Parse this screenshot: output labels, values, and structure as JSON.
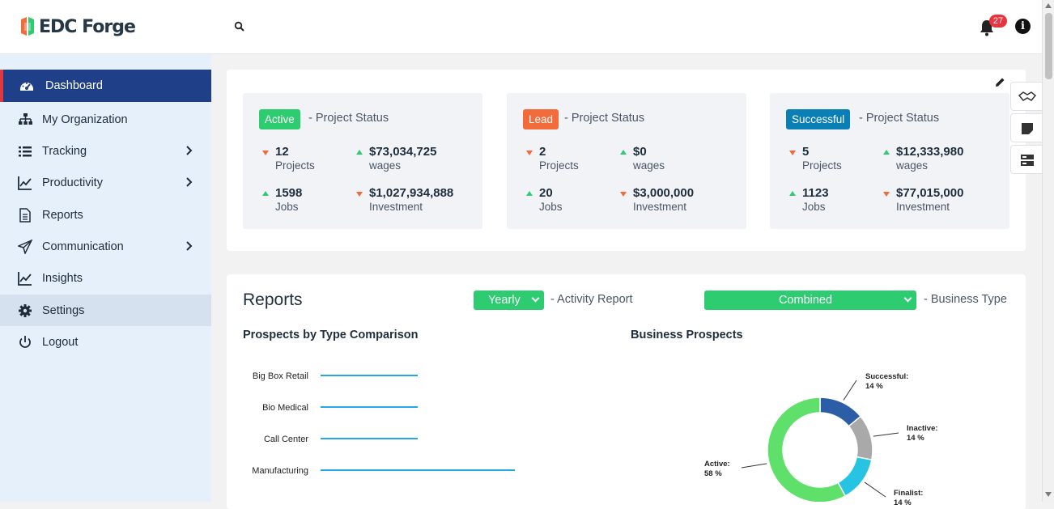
{
  "app": {
    "name": "EDC Forge"
  },
  "header": {
    "notification_count": "27"
  },
  "sidebar": {
    "items": [
      {
        "label": "Dashboard"
      },
      {
        "label": "My Organization"
      },
      {
        "label": "Tracking"
      },
      {
        "label": "Productivity"
      },
      {
        "label": "Reports"
      },
      {
        "label": "Communication"
      },
      {
        "label": "Insights"
      },
      {
        "label": "Settings"
      },
      {
        "label": "Logout"
      }
    ]
  },
  "status_cards": [
    {
      "chip": "Active",
      "chip_color": "#2ecc71",
      "subtitle": "- Project Status",
      "projects": "12",
      "projects_label": "Projects",
      "wages": "$73,034,725",
      "wages_label": "wages",
      "jobs": "1598",
      "jobs_label": "Jobs",
      "investment": "$1,027,934,888",
      "investment_label": "Investment"
    },
    {
      "chip": "Lead",
      "chip_color": "#f26b3a",
      "subtitle": "- Project Status",
      "projects": "2",
      "projects_label": "Projects",
      "wages": "$0",
      "wages_label": "wages",
      "jobs": "20",
      "jobs_label": "Jobs",
      "investment": "$3,000,000",
      "investment_label": "Investment"
    },
    {
      "chip": "Successful",
      "chip_color": "#0a7fb5",
      "subtitle": "- Project Status",
      "projects": "5",
      "projects_label": "Projects",
      "wages": "$12,333,980",
      "wages_label": "wages",
      "jobs": "1123",
      "jobs_label": "Jobs",
      "investment": "$77,015,000",
      "investment_label": "Investment"
    }
  ],
  "reports": {
    "title": "Reports",
    "period_select": "Yearly",
    "period_sub": "- Activity Report",
    "type_select": "Combined",
    "type_sub": "- Business Type"
  },
  "chart_data": [
    {
      "type": "bar",
      "title": "Prospects by Type Comparison",
      "categories": [
        "Big Box Retail",
        "Bio Medical",
        "Call Center",
        "Manufacturing"
      ],
      "values": [
        1,
        1,
        1,
        2
      ]
    },
    {
      "type": "pie",
      "title": "Business Prospects",
      "slices": [
        {
          "label": "Successful:",
          "pct_label": "14 %",
          "value": 14,
          "color": "#2b5ea7"
        },
        {
          "label": "Inactive:",
          "pct_label": "14 %",
          "value": 14,
          "color": "#a9a9a9"
        },
        {
          "label": "Finalist:",
          "pct_label": "14 %",
          "value": 14,
          "color": "#27c3e3"
        },
        {
          "label": "Active:",
          "pct_label": "58 %",
          "value": 58,
          "color": "#5fe06a"
        }
      ]
    }
  ]
}
